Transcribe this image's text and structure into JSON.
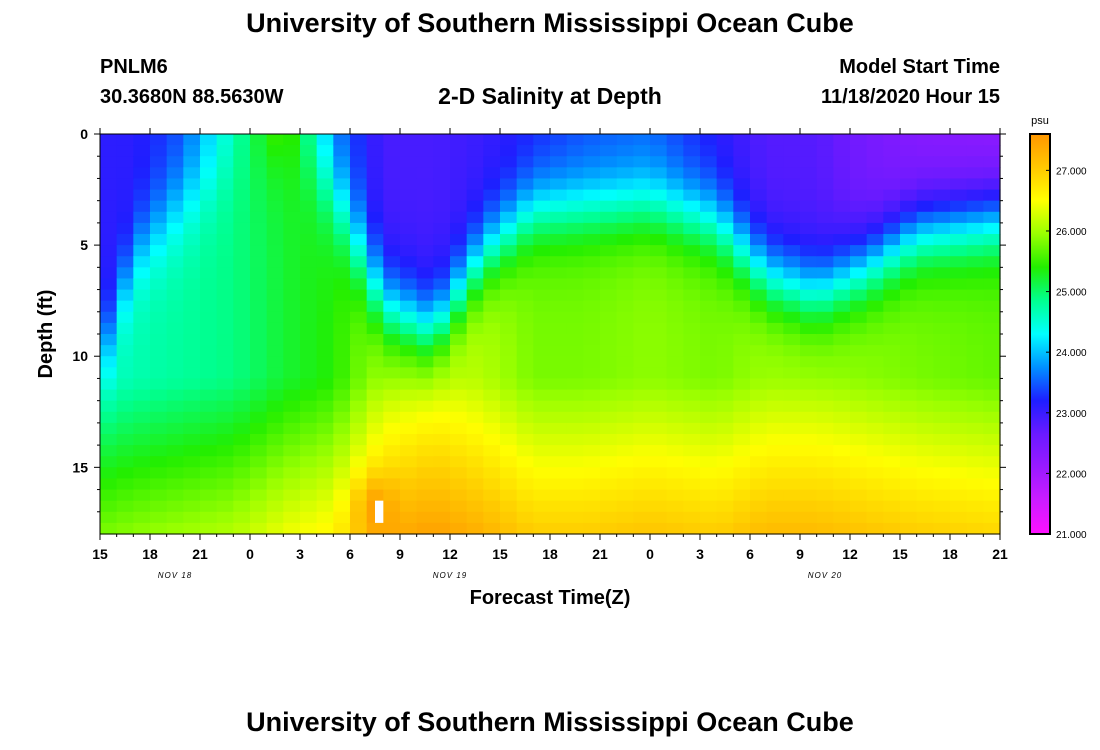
{
  "page": {
    "title": "University of Southern Mississippi Ocean Cube",
    "footer_title": "University of Southern Mississippi Ocean Cube",
    "station": "PNLM6",
    "coordinates": "30.3680N 88.5630W",
    "model_start_label": "Model Start Time",
    "model_start_value": "11/18/2020 Hour 15"
  },
  "chart_data": {
    "type": "heatmap",
    "title": "2-D Salinity at Depth",
    "xlabel": "Forecast Time(Z)",
    "ylabel": "Depth (ft)",
    "x_tick_labels": [
      "15",
      "18",
      "21",
      "0",
      "3",
      "6",
      "9",
      "12",
      "15",
      "18",
      "21",
      "0",
      "3",
      "6",
      "9",
      "12",
      "15",
      "18",
      "21"
    ],
    "x_date_labels": [
      "NOV 18",
      "NOV 19",
      "NOV 20"
    ],
    "x_date_label_tick_index": [
      1.5,
      7,
      14.5
    ],
    "x_range_hours": [
      0,
      54
    ],
    "y_tick_labels": [
      "0",
      "5",
      "10",
      "15"
    ],
    "y_tick_values": [
      0,
      5,
      10,
      15
    ],
    "ylim": [
      0,
      18
    ],
    "colorbar": {
      "unit": "psu",
      "min": 21.0,
      "max": 27.6,
      "tick_labels": [
        "21.000",
        "22.000",
        "23.000",
        "24.000",
        "25.000",
        "26.000",
        "27.000"
      ],
      "tick_values": [
        21,
        22,
        23,
        24,
        25,
        26,
        27
      ],
      "colors": [
        "#ff10ff",
        "#cc1cff",
        "#9a1aff",
        "#6a1aff",
        "#1e1eff",
        "#0090ff",
        "#00ffff",
        "#00ff90",
        "#22ee00",
        "#99ff00",
        "#ffff00",
        "#ffc800",
        "#ff9600"
      ]
    },
    "depth_levels_ft": [
      0,
      0.5,
      1,
      1.5,
      2,
      2.5,
      3,
      3.5,
      4,
      4.5,
      5,
      5.5,
      6,
      6.5,
      7,
      7.5,
      8,
      8.5,
      9,
      9.5,
      10,
      10.5,
      11,
      11.5,
      12,
      12.5,
      13,
      13.5,
      14,
      14.5,
      15,
      15.5,
      16,
      16.5,
      17,
      17.5,
      18
    ],
    "profiles": [
      {
        "hour": 0,
        "surface": 23.1,
        "bottom": 25.8,
        "halocline_ft": 10.5,
        "width_ft": 1.8
      },
      {
        "hour": 2,
        "surface": 23.1,
        "bottom": 25.9,
        "halocline_ft": 5.5,
        "width_ft": 2.0
      },
      {
        "hour": 5,
        "surface": 23.4,
        "bottom": 26.0,
        "halocline_ft": 3.0,
        "width_ft": 2.4
      },
      {
        "hour": 8,
        "surface": 24.6,
        "bottom": 26.1,
        "halocline_ft": 1.5,
        "width_ft": 2.2
      },
      {
        "hour": 11,
        "surface": 25.9,
        "bottom": 26.4,
        "halocline_ft": 0.2,
        "width_ft": 2.0
      },
      {
        "hour": 14,
        "surface": 23.6,
        "bottom": 26.6,
        "halocline_ft": 2.6,
        "width_ft": 2.4
      },
      {
        "hour": 17,
        "surface": 22.9,
        "bottom": 27.3,
        "halocline_ft": 7.8,
        "width_ft": 2.2
      },
      {
        "hour": 20,
        "surface": 22.9,
        "bottom": 27.5,
        "halocline_ft": 9.0,
        "width_ft": 2.0
      },
      {
        "hour": 23,
        "surface": 23.0,
        "bottom": 27.3,
        "halocline_ft": 5.5,
        "width_ft": 2.0
      },
      {
        "hour": 26,
        "surface": 23.2,
        "bottom": 27.0,
        "halocline_ft": 3.5,
        "width_ft": 2.0
      },
      {
        "hour": 29,
        "surface": 23.4,
        "bottom": 27.0,
        "halocline_ft": 3.4,
        "width_ft": 2.0
      },
      {
        "hour": 33,
        "surface": 23.5,
        "bottom": 27.1,
        "halocline_ft": 3.2,
        "width_ft": 2.0
      },
      {
        "hour": 37,
        "surface": 23.1,
        "bottom": 27.0,
        "halocline_ft": 4.0,
        "width_ft": 2.0
      },
      {
        "hour": 40,
        "surface": 22.8,
        "bottom": 27.2,
        "halocline_ft": 6.4,
        "width_ft": 2.0
      },
      {
        "hour": 43,
        "surface": 22.8,
        "bottom": 27.2,
        "halocline_ft": 7.2,
        "width_ft": 2.0
      },
      {
        "hour": 46,
        "surface": 22.5,
        "bottom": 27.1,
        "halocline_ft": 6.0,
        "width_ft": 2.0
      },
      {
        "hour": 49,
        "surface": 22.3,
        "bottom": 27.0,
        "halocline_ft": 4.4,
        "width_ft": 2.0
      },
      {
        "hour": 54,
        "surface": 22.2,
        "bottom": 26.9,
        "halocline_ft": 3.8,
        "width_ft": 2.0
      }
    ],
    "masked_cells": [
      {
        "hour_start": 16.5,
        "hour_end": 17.0,
        "depth_start": 16.5,
        "depth_end": 17.5
      }
    ],
    "hotspot": {
      "hour": 16.5,
      "depth_ft": 16.8,
      "value": 27.8
    }
  }
}
